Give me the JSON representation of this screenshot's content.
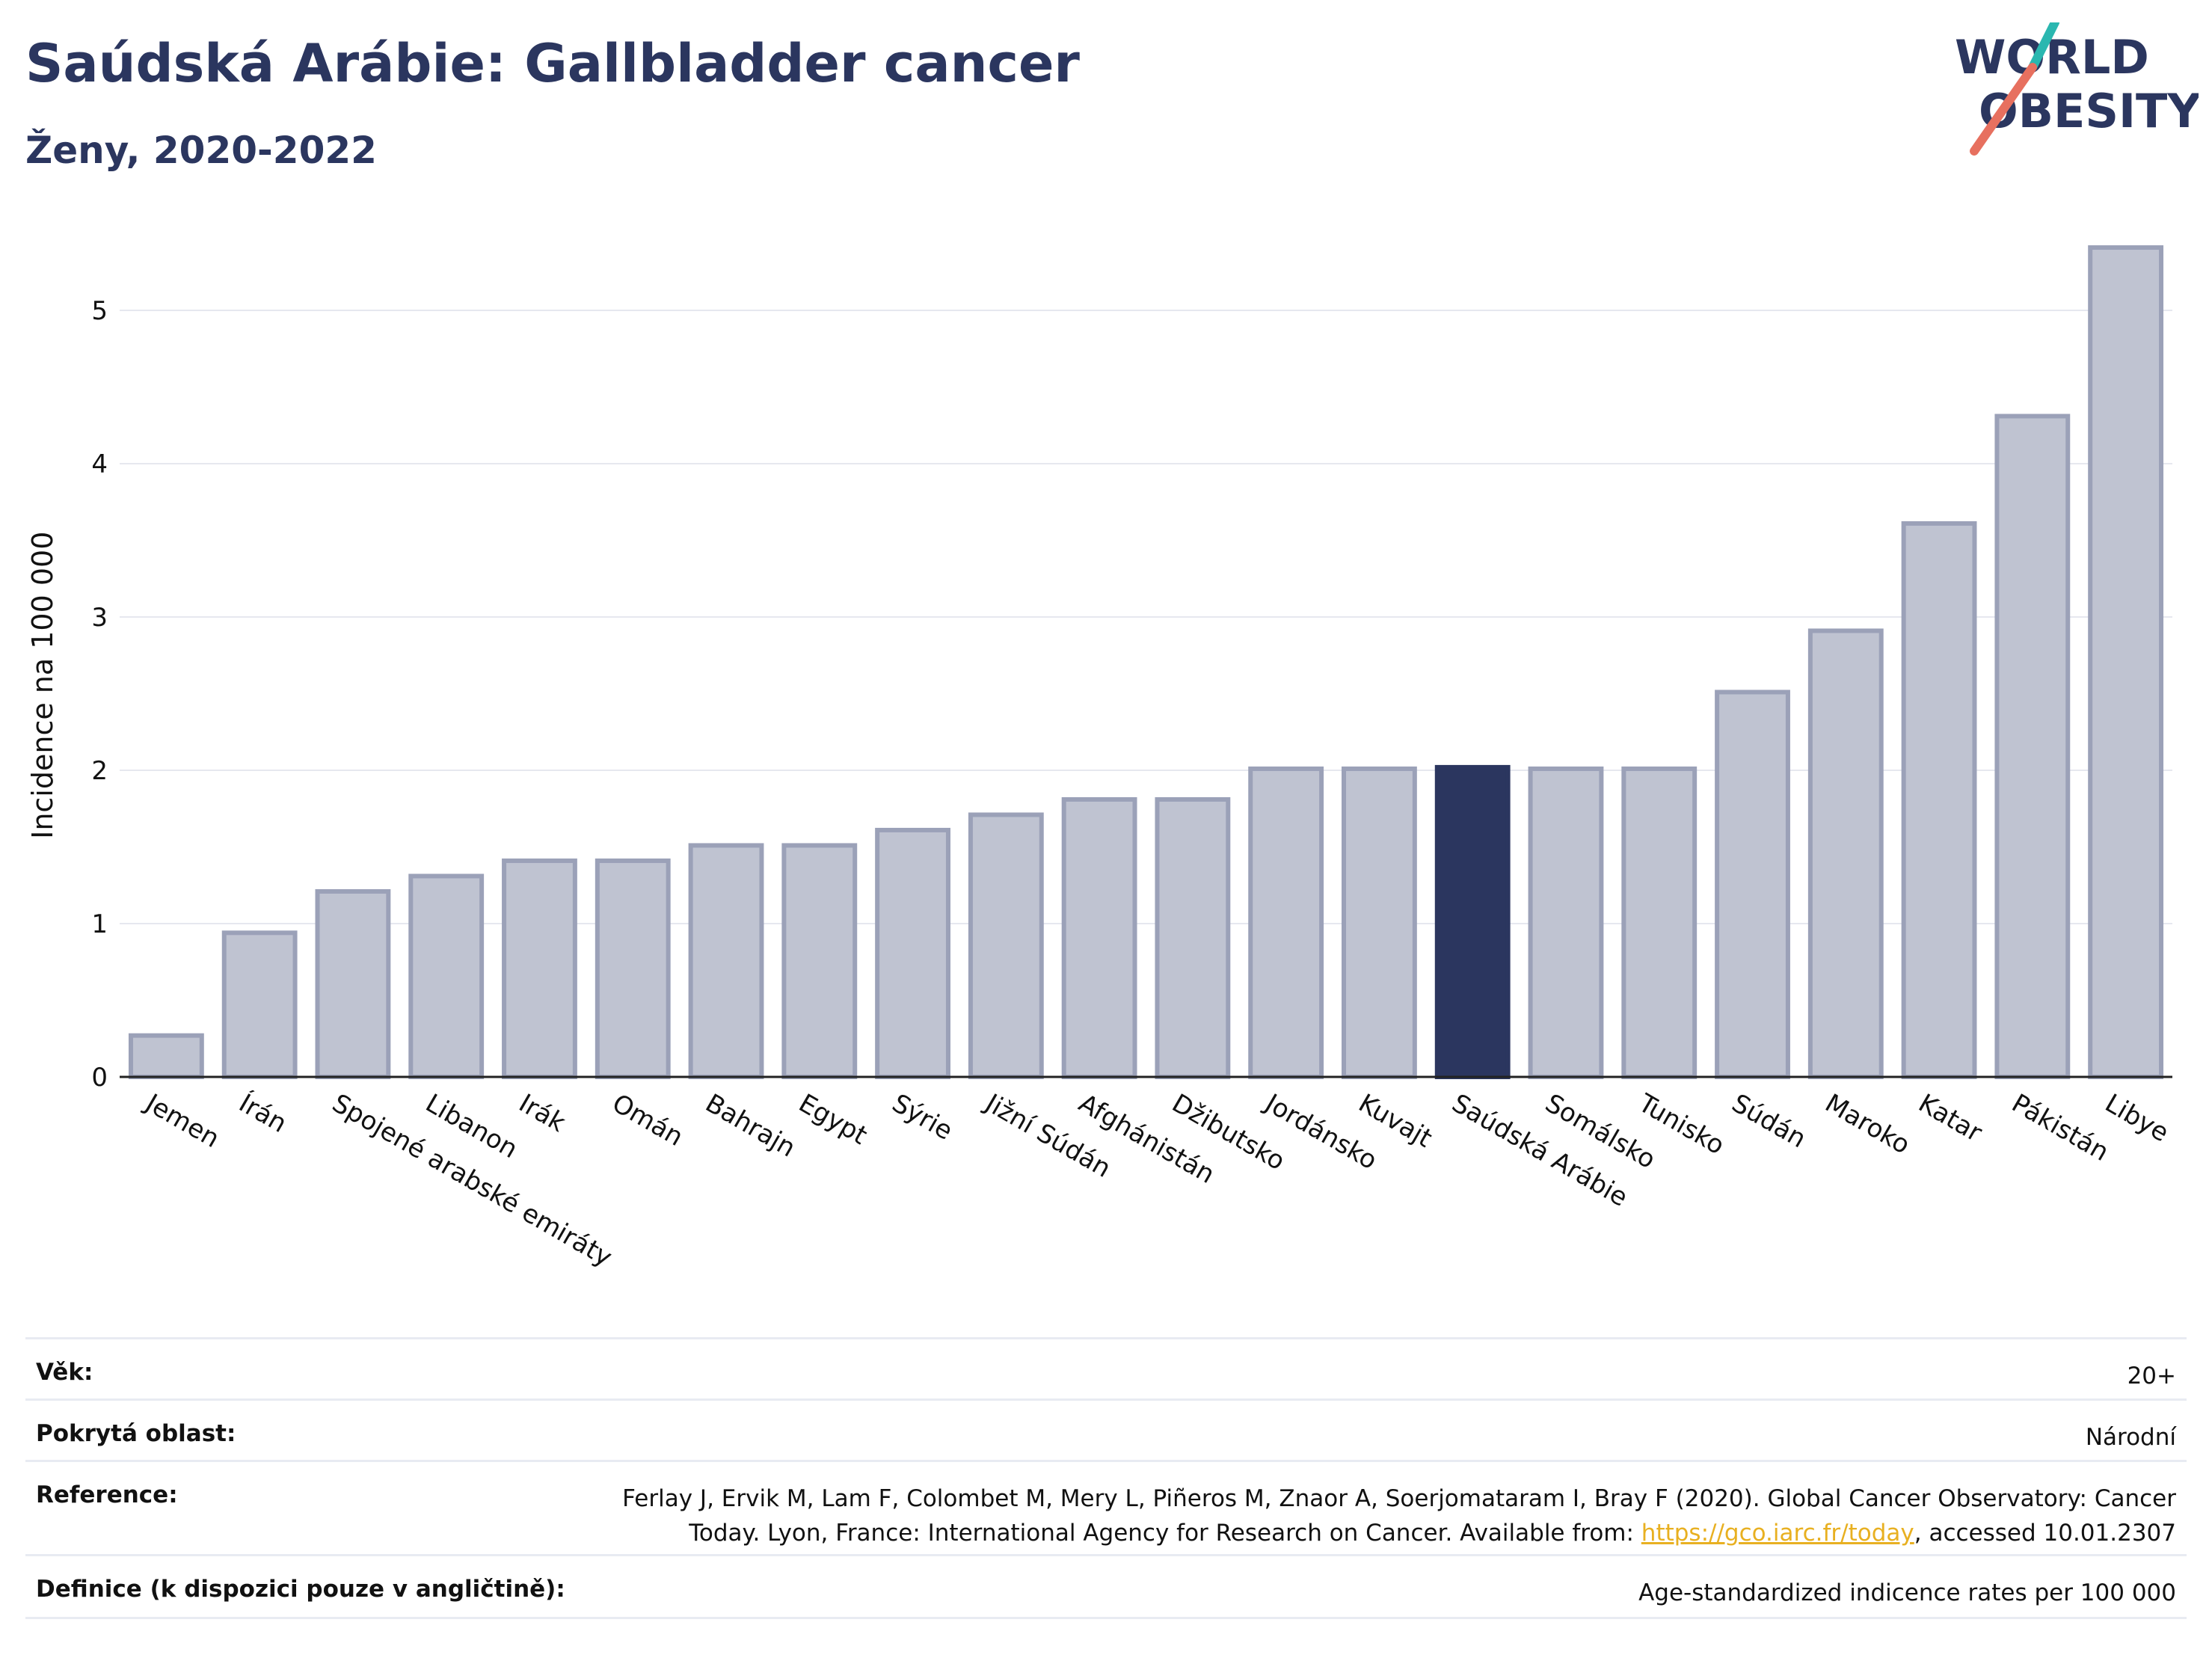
{
  "header": {
    "title": "Saúdská Arábie: Gallbladder cancer",
    "subtitle": "Ženy, 2020-2022"
  },
  "logo": {
    "line1": "WORLD",
    "line2": "OBESITY",
    "colors": [
      "#2b365f",
      "#2ab7b0",
      "#e7705f"
    ]
  },
  "chart_data": {
    "type": "bar",
    "categories": [
      "Jemen",
      "Írán",
      "Spojené arabské emiráty",
      "Libanon",
      "Irák",
      "Omán",
      "Bahrajn",
      "Egypt",
      "Sýrie",
      "Jižní Súdán",
      "Afghánistán",
      "Džibutsko",
      "Jordánsko",
      "Kuvajt",
      "Saúdská Arábie",
      "Somálsko",
      "Tunisko",
      "Súdán",
      "Maroko",
      "Katar",
      "Pákistán",
      "Libye"
    ],
    "values": [
      0.27,
      0.94,
      1.21,
      1.31,
      1.41,
      1.41,
      1.51,
      1.51,
      1.61,
      1.71,
      1.81,
      1.81,
      2.01,
      2.01,
      2.02,
      2.01,
      2.01,
      2.51,
      2.91,
      3.61,
      4.31,
      5.41
    ],
    "highlight": "Saúdská Arábie",
    "ylabel": "Incidence na 100 000",
    "xlabel": "",
    "yticks": [
      0,
      1,
      2,
      3,
      4,
      5
    ],
    "ylim": [
      0,
      5.5
    ],
    "grid": true,
    "colors": {
      "bar": "#bfc3d1",
      "bar_edge": "#9ba1b8",
      "highlight": "#2b365f",
      "grid": "#e6e8ef"
    }
  },
  "info": {
    "age_label": "Věk:",
    "age_value": "20+",
    "area_label": "Pokrytá oblast:",
    "area_value": "Národní",
    "ref_label": "Reference:",
    "ref_text_1": "Ferlay J, Ervik M, Lam F, Colombet M, Mery L, Piñeros M, Znaor A, Soerjomataram I, Bray F (2020). Global Cancer Observatory: Cancer Today. Lyon, France: International Agency for Research on Cancer. Available from: ",
    "ref_link": "https://gco.iarc.fr/today",
    "ref_text_2": ", accessed 10.01.2307",
    "def_label": "Definice (k dispozici pouze v angličtině):",
    "def_value": "Age-standardized indicence rates per 100 000"
  }
}
